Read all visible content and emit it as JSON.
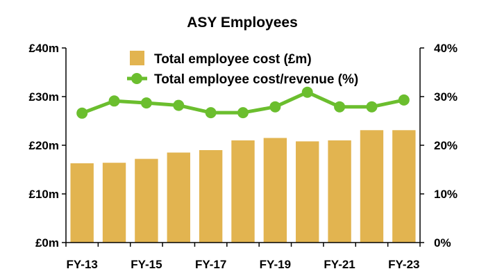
{
  "chart_data": {
    "type": "bar",
    "title": "ASY Employees",
    "categories": [
      "FY-13",
      "FY-14",
      "FY-15",
      "FY-16",
      "FY-17",
      "FY-18",
      "FY-19",
      "FY-20",
      "FY-21",
      "FY-22",
      "FY-23"
    ],
    "x_tick_labels": [
      "FY-13",
      "",
      "FY-15",
      "",
      "FY-17",
      "",
      "FY-19",
      "",
      "FY-21",
      "",
      "FY-23"
    ],
    "series": [
      {
        "name": "Total employee cost (£m)",
        "type": "bar",
        "axis": "left",
        "color": "#E2B450",
        "values": [
          16.3,
          16.4,
          17.2,
          18.5,
          19.0,
          21.0,
          21.5,
          20.8,
          21.0,
          23.1,
          23.1
        ]
      },
      {
        "name": "Total employee cost/revenue (%)",
        "type": "line",
        "axis": "right",
        "color": "#6BBE2E",
        "values": [
          26.6,
          29.1,
          28.7,
          28.2,
          26.7,
          26.7,
          27.9,
          30.9,
          27.9,
          27.9,
          29.3
        ]
      }
    ],
    "y_left": {
      "ylim": [
        0,
        40
      ],
      "ticks": [
        "£0m",
        "£10m",
        "£20m",
        "£30m",
        "£40m"
      ]
    },
    "y_right": {
      "ylim": [
        0,
        40
      ],
      "ticks": [
        "0%",
        "10%",
        "20%",
        "30%",
        "40%"
      ]
    },
    "legend_position": "top",
    "grid": false
  }
}
